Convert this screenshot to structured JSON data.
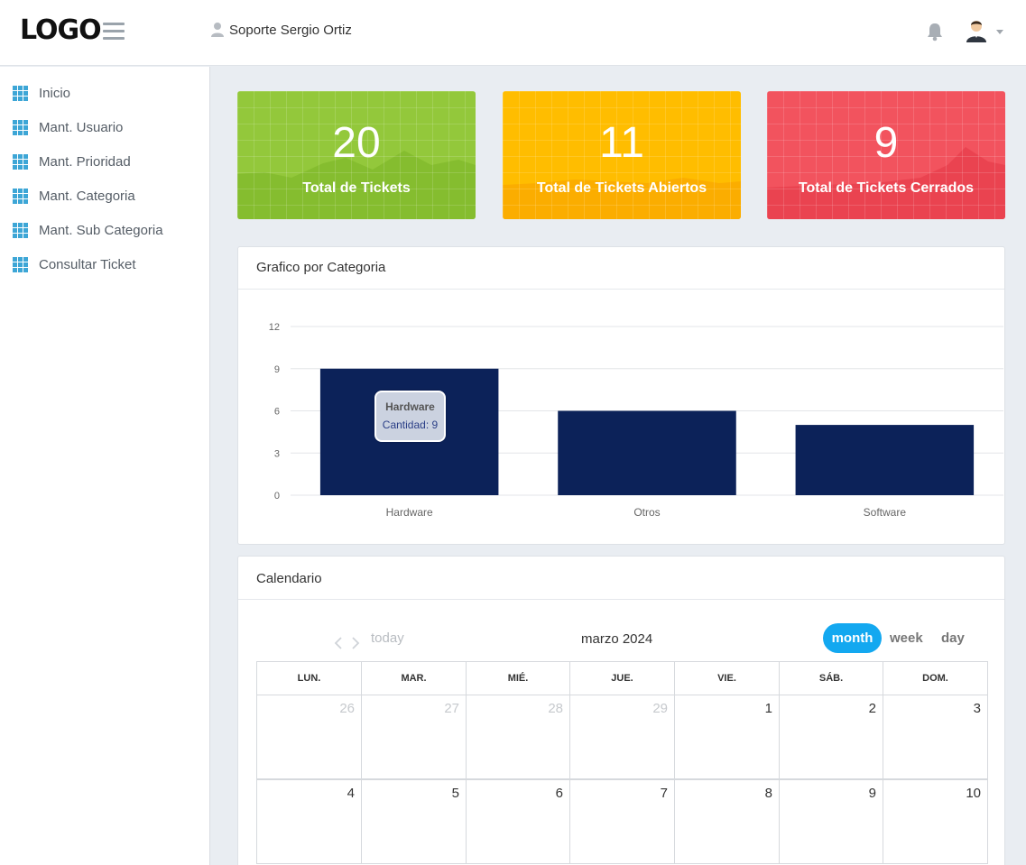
{
  "header": {
    "logo": "LOGO",
    "user_name": "Soporte Sergio Ortiz"
  },
  "sidebar": {
    "items": [
      {
        "label": "Inicio"
      },
      {
        "label": "Mant. Usuario"
      },
      {
        "label": "Mant. Prioridad"
      },
      {
        "label": "Mant. Categoria"
      },
      {
        "label": "Mant. Sub Categoria"
      },
      {
        "label": "Consultar Ticket"
      }
    ]
  },
  "stats": [
    {
      "value": "20",
      "label": "Total de Tickets",
      "color": "#8cc63f"
    },
    {
      "value": "11",
      "label": "Total de Tickets Abiertos",
      "color": "#ffb800"
    },
    {
      "value": "9",
      "label": "Total de Tickets Cerrados",
      "color": "#f0535c"
    }
  ],
  "chart_panel": {
    "title": "Grafico por Categoria",
    "tooltip_title": "Hardware",
    "tooltip_value": "Cantidad: 9"
  },
  "chart_data": {
    "type": "bar",
    "categories": [
      "Hardware",
      "Otros",
      "Software"
    ],
    "values": [
      9,
      6,
      5
    ],
    "yticks": [
      0,
      3,
      6,
      9,
      12
    ],
    "ylim": [
      0,
      12
    ],
    "bar_color": "#0c2259",
    "title": "",
    "xlabel": "",
    "ylabel": ""
  },
  "calendar": {
    "title": "Calendario",
    "today_label": "today",
    "month_title": "marzo 2024",
    "views": [
      "month",
      "week",
      "day"
    ],
    "active_view": "month",
    "weekdays": [
      "LUN.",
      "MAR.",
      "MIÉ.",
      "JUE.",
      "VIE.",
      "SÁB.",
      "DOM."
    ],
    "weeks": [
      [
        {
          "d": "26",
          "other": true
        },
        {
          "d": "27",
          "other": true
        },
        {
          "d": "28",
          "other": true
        },
        {
          "d": "29",
          "other": true
        },
        {
          "d": "1",
          "other": false
        },
        {
          "d": "2",
          "other": false
        },
        {
          "d": "3",
          "other": false
        }
      ],
      [
        {
          "d": "4",
          "other": false
        },
        {
          "d": "5",
          "other": false
        },
        {
          "d": "6",
          "other": false
        },
        {
          "d": "7",
          "other": false
        },
        {
          "d": "8",
          "other": false
        },
        {
          "d": "9",
          "other": false
        },
        {
          "d": "10",
          "other": false
        }
      ]
    ]
  }
}
